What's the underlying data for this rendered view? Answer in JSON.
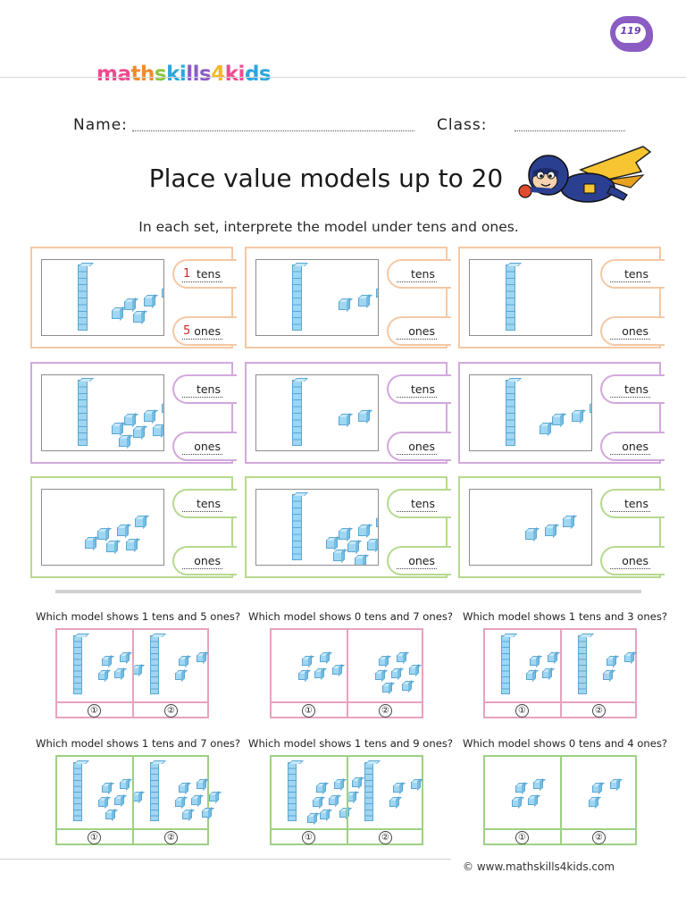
{
  "header": {
    "logo_text": "mathskills4kids",
    "page_number": "119",
    "name_label": "Name:",
    "class_label": "Class:"
  },
  "title": "Place value models up to 20",
  "subtitle": "In each set, interprete the model under tens and ones.",
  "cards": [
    {
      "color": "orange",
      "tens_value": "1",
      "ones_value": "5",
      "tens_label": "tens",
      "ones_label": "ones",
      "rods": 1,
      "units": 5
    },
    {
      "color": "orange",
      "tens_value": "",
      "ones_value": "",
      "tens_label": "tens",
      "ones_label": "ones",
      "rods": 1,
      "units": 3
    },
    {
      "color": "orange",
      "tens_value": "",
      "ones_value": "",
      "tens_label": "tens",
      "ones_label": "ones",
      "rods": 1,
      "units": 0
    },
    {
      "color": "purple",
      "tens_value": "",
      "ones_value": "",
      "tens_label": "tens",
      "ones_label": "ones",
      "rods": 1,
      "units": 7
    },
    {
      "color": "purple",
      "tens_value": "",
      "ones_value": "",
      "tens_label": "tens",
      "ones_label": "ones",
      "rods": 1,
      "units": 2
    },
    {
      "color": "purple",
      "tens_value": "",
      "ones_value": "",
      "tens_label": "tens",
      "ones_label": "ones",
      "rods": 1,
      "units": 4
    },
    {
      "color": "green",
      "tens_value": "",
      "ones_value": "",
      "tens_label": "tens",
      "ones_label": "ones",
      "rods": 0,
      "units": 6
    },
    {
      "color": "green",
      "tens_value": "",
      "ones_value": "",
      "tens_label": "tens",
      "ones_label": "ones",
      "rods": 1,
      "units": 8
    },
    {
      "color": "green",
      "tens_value": "",
      "ones_value": "",
      "tens_label": "tens",
      "ones_label": "ones",
      "rods": 0,
      "units": 3
    }
  ],
  "questions": [
    {
      "text": "Which model shows 1 tens and 5 ones?",
      "color": "pink",
      "options": [
        "①",
        "②"
      ],
      "models": [
        {
          "rods": 1,
          "units": 5
        },
        {
          "rods": 1,
          "units": 3
        }
      ]
    },
    {
      "text": "Which model shows 0 tens and 7 ones?",
      "color": "pink",
      "options": [
        "①",
        "②"
      ],
      "models": [
        {
          "rods": 0,
          "units": 5
        },
        {
          "rods": 0,
          "units": 7
        }
      ]
    },
    {
      "text": "Which model shows 1 tens and 3 ones?",
      "color": "pink",
      "options": [
        "①",
        "②"
      ],
      "models": [
        {
          "rods": 1,
          "units": 4
        },
        {
          "rods": 1,
          "units": 3
        }
      ]
    },
    {
      "text": "Which model shows 1 tens and 7 ones?",
      "color": "lgreen",
      "options": [
        "①",
        "②"
      ],
      "models": [
        {
          "rods": 1,
          "units": 6
        },
        {
          "rods": 1,
          "units": 7
        }
      ]
    },
    {
      "text": "Which model shows 1 tens and 9 ones?",
      "color": "lgreen",
      "options": [
        "①",
        "②"
      ],
      "models": [
        {
          "rods": 1,
          "units": 9
        },
        {
          "rods": 1,
          "units": 3
        }
      ]
    },
    {
      "text": "Which model shows 0 tens and 4 ones?",
      "color": "lgreen",
      "options": [
        "①",
        "②"
      ],
      "models": [
        {
          "rods": 0,
          "units": 4
        },
        {
          "rods": 0,
          "units": 3
        }
      ]
    }
  ],
  "footer": "© www.mathskills4kids.com",
  "colors": {
    "orange": "#f5c8a4",
    "purple": "#d3a8dc",
    "green": "#b6d98f",
    "pink": "#e7a2bf",
    "lgreen": "#9ed085",
    "block": "#9fd6f2",
    "answer": "#d0271f"
  }
}
